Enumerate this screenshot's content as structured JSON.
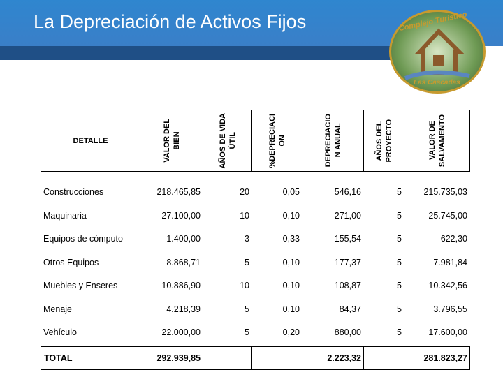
{
  "header": {
    "title": "La Depreciación de Activos Fijos"
  },
  "logo": {
    "top": "Complejo Turístico",
    "bottom": "Las Cascadas"
  },
  "table": {
    "headers": [
      [
        "DETALLE"
      ],
      [
        "VALOR DEL",
        "BIEN"
      ],
      [
        "AÑOS DE VIDA",
        "ÚTIL"
      ],
      [
        "%DEPRECIACI",
        "ON"
      ],
      [
        "DEPRECIACIO",
        "N ANUAL"
      ],
      [
        "AÑOS DEL",
        "PROYECTO"
      ],
      [
        "VALOR DE",
        "SALVAMENTO"
      ]
    ],
    "rows": [
      [
        "Construcciones",
        "218.465,85",
        "20",
        "0,05",
        "546,16",
        "5",
        "215.735,03"
      ],
      [
        "Maquinaria",
        "27.100,00",
        "10",
        "0,10",
        "271,00",
        "5",
        "25.745,00"
      ],
      [
        "Equipos de cómputo",
        "1.400,00",
        "3",
        "0,33",
        "155,54",
        "5",
        "622,30"
      ],
      [
        "Otros Equipos",
        "8.868,71",
        "5",
        "0,10",
        "177,37",
        "5",
        "7.981,84"
      ],
      [
        "Muebles y Enseres",
        "10.886,90",
        "10",
        "0,10",
        "108,87",
        "5",
        "10.342,56"
      ],
      [
        "Menaje",
        "4.218,39",
        "5",
        "0,10",
        "84,37",
        "5",
        "3.796,55"
      ],
      [
        "Vehículo",
        "22.000,00",
        "5",
        "0,20",
        "880,00",
        "5",
        "17.600,00"
      ]
    ],
    "total": {
      "label": "TOTAL",
      "valor": "292.939,85",
      "depreciacion": "2.223,32",
      "salvamento": "281.823,27"
    }
  }
}
